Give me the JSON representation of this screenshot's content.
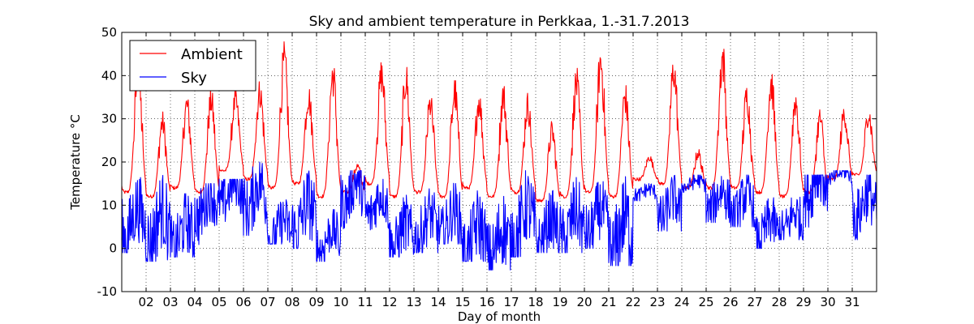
{
  "chart_data": {
    "type": "line",
    "title": "Sky and ambient temperature in Perkkaa, 1.-31.7.2013",
    "xlabel": "Day of month",
    "ylabel": "Temperature °C",
    "xlim": [
      1,
      32
    ],
    "ylim": [
      -10,
      50
    ],
    "grid": true,
    "legend_position": "top-left",
    "x_tick_labels": [
      "02",
      "03",
      "04",
      "05",
      "06",
      "07",
      "08",
      "09",
      "10",
      "11",
      "12",
      "13",
      "14",
      "15",
      "16",
      "17",
      "18",
      "19",
      "20",
      "21",
      "22",
      "23",
      "24",
      "25",
      "26",
      "27",
      "28",
      "29",
      "30",
      "31"
    ],
    "y_ticks": [
      -10,
      0,
      10,
      20,
      30,
      40,
      50
    ],
    "days": [
      1,
      2,
      3,
      4,
      5,
      6,
      7,
      8,
      9,
      10,
      11,
      12,
      13,
      14,
      15,
      16,
      17,
      18,
      19,
      20,
      21,
      22,
      23,
      24,
      25,
      26,
      27,
      28,
      29,
      30,
      31
    ],
    "series": [
      {
        "name": "Ambient",
        "color": "#ff0000",
        "daily_min": [
          13,
          12,
          14,
          13,
          18,
          16,
          14,
          15,
          12,
          13,
          15,
          12,
          13,
          12,
          14,
          12,
          13,
          11,
          12,
          13,
          12,
          16,
          15,
          14,
          14,
          14,
          13,
          12,
          13,
          16,
          17
        ],
        "daily_max": [
          40,
          29,
          33,
          34,
          34,
          36,
          43,
          35,
          40,
          19,
          40,
          39,
          33,
          36,
          34,
          35,
          33,
          27,
          38,
          43,
          35,
          21,
          41,
          22,
          44,
          35,
          38,
          34,
          30,
          31,
          31
        ],
        "daily_mean": [
          22,
          18,
          20,
          20,
          24,
          24,
          25,
          23,
          22,
          17,
          25,
          23,
          21,
          22,
          22,
          22,
          22,
          18,
          23,
          24,
          21,
          18,
          25,
          19,
          26,
          22,
          23,
          21,
          21,
          21,
          21
        ]
      },
      {
        "name": "Sky",
        "color": "#0000ff",
        "daily_min": [
          -1,
          -3,
          -2,
          0,
          3,
          3,
          1,
          0,
          -3,
          4,
          3,
          -2,
          -1,
          1,
          -3,
          -5,
          -2,
          -1,
          -1,
          0,
          -4,
          11,
          4,
          13,
          6,
          5,
          0,
          2,
          1,
          14,
          2
        ],
        "daily_max": [
          17,
          17,
          14,
          15,
          16,
          20,
          14,
          19,
          9,
          18,
          16,
          13,
          14,
          16,
          16,
          15,
          18,
          14,
          17,
          16,
          18,
          15,
          17,
          17,
          19,
          17,
          13,
          14,
          17,
          18,
          17
        ],
        "daily_mean": [
          6,
          5,
          3,
          10,
          13,
          12,
          4,
          7,
          2,
          13,
          10,
          3,
          5,
          6,
          2,
          1,
          6,
          4,
          5,
          6,
          3,
          13,
          9,
          15,
          11,
          10,
          4,
          6,
          15,
          17,
          10
        ]
      }
    ]
  }
}
